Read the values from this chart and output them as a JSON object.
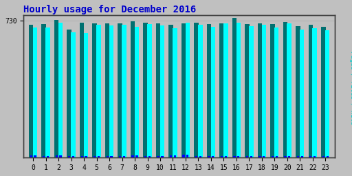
{
  "title": "Hourly usage for December 2016",
  "title_color": "#0000cc",
  "title_fontsize": 10,
  "hours": [
    0,
    1,
    2,
    3,
    4,
    5,
    6,
    7,
    8,
    9,
    10,
    11,
    12,
    13,
    14,
    15,
    16,
    17,
    18,
    19,
    20,
    21,
    22,
    23
  ],
  "pages": [
    695,
    695,
    720,
    670,
    665,
    710,
    705,
    708,
    698,
    712,
    705,
    690,
    720,
    710,
    698,
    715,
    720,
    700,
    710,
    695,
    715,
    685,
    690,
    680
  ],
  "files": [
    710,
    712,
    735,
    685,
    720,
    718,
    718,
    718,
    728,
    720,
    718,
    708,
    718,
    720,
    712,
    718,
    745,
    712,
    715,
    712,
    722,
    702,
    708,
    698
  ],
  "hits": [
    12,
    8,
    14,
    10,
    10,
    10,
    10,
    8,
    14,
    10,
    10,
    14,
    16,
    8,
    8,
    10,
    8,
    10,
    8,
    10,
    10,
    8,
    8,
    8
  ],
  "bar_width": 0.35,
  "ylim_min": 0,
  "ylim_max": 760,
  "ytick_val": 730,
  "ytick_label": "730",
  "background_color": "#c0c0c0",
  "plot_bg_color": "#c0c0c0",
  "border_color": "#808080",
  "cyan_color": "#00ffff",
  "green_color": "#007070",
  "blue_color": "#0000ff",
  "font_family": "monospace",
  "right_label_pages_color": "#00cccc",
  "right_label_files_color": "#006060",
  "right_label_hits_color": "#0000cc"
}
